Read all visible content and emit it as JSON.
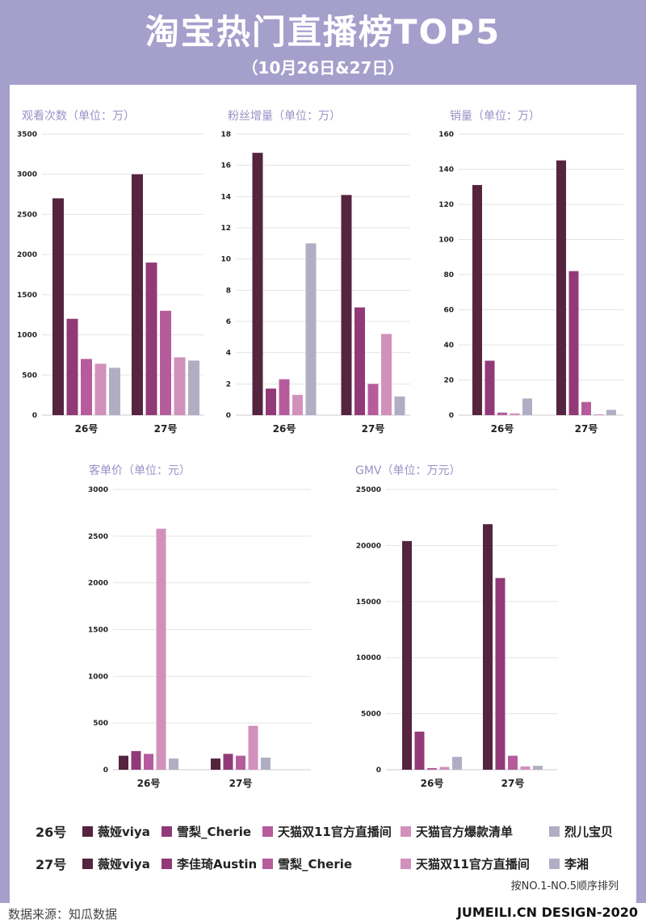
{
  "header": {
    "title": "淘宝热门直播榜TOP5",
    "subtitle": "（10月26日&27日）"
  },
  "colors": [
    "#55243f",
    "#923a77",
    "#b65c9c",
    "#d191bb",
    "#b1aec4"
  ],
  "legend": {
    "day26": {
      "label": "26号",
      "items": [
        "薇娅viya",
        "雪梨_Cherie",
        "天猫双11官方直播间",
        "天猫官方爆款清单",
        "烈儿宝贝"
      ]
    },
    "day27": {
      "label": "27号",
      "items": [
        "薇娅viya",
        "李佳琦Austin",
        "雪梨_Cherie",
        "天猫双11官方直播间",
        "李湘"
      ]
    },
    "note": "按NO.1-NO.5顺序排列"
  },
  "footer": {
    "source": "数据来源：知瓜数据",
    "brand": "JUMEILI.CN DESIGN-2020"
  },
  "chart_data": [
    {
      "type": "bar",
      "title": "观看次数（单位：万）",
      "categories": [
        "26号",
        "27号"
      ],
      "ylim": [
        0,
        3500
      ],
      "ticks": [
        0,
        500,
        1000,
        1500,
        2000,
        2500,
        3000,
        3500
      ],
      "series": [
        {
          "name": "No.1",
          "values": [
            2700,
            3000
          ]
        },
        {
          "name": "No.2",
          "values": [
            1200,
            1900
          ]
        },
        {
          "name": "No.3",
          "values": [
            700,
            1300
          ]
        },
        {
          "name": "No.4",
          "values": [
            640,
            720
          ]
        },
        {
          "name": "No.5",
          "values": [
            590,
            680
          ]
        }
      ]
    },
    {
      "type": "bar",
      "title": "粉丝增量（单位：万）",
      "categories": [
        "26号",
        "27号"
      ],
      "ylim": [
        0,
        18
      ],
      "ticks": [
        0,
        2,
        4,
        6,
        8,
        10,
        12,
        14,
        16,
        18
      ],
      "series": [
        {
          "name": "No.1",
          "values": [
            16.8,
            14.1
          ]
        },
        {
          "name": "No.2",
          "values": [
            1.7,
            6.9
          ]
        },
        {
          "name": "No.3",
          "values": [
            2.3,
            2.0
          ]
        },
        {
          "name": "No.4",
          "values": [
            1.3,
            5.2
          ]
        },
        {
          "name": "No.5",
          "values": [
            11,
            1.2
          ]
        }
      ]
    },
    {
      "type": "bar",
      "title": "销量（单位：万）",
      "categories": [
        "26号",
        "27号"
      ],
      "ylim": [
        0,
        160
      ],
      "ticks": [
        0,
        20,
        40,
        60,
        80,
        100,
        120,
        140,
        160
      ],
      "series": [
        {
          "name": "No.1",
          "values": [
            131,
            145
          ]
        },
        {
          "name": "No.2",
          "values": [
            31,
            82
          ]
        },
        {
          "name": "No.3",
          "values": [
            1.5,
            7.5
          ]
        },
        {
          "name": "No.4",
          "values": [
            1,
            0.5
          ]
        },
        {
          "name": "No.5",
          "values": [
            9.5,
            3
          ]
        }
      ]
    },
    {
      "type": "bar",
      "title": "客单价（单位：元）",
      "categories": [
        "26号",
        "27号"
      ],
      "ylim": [
        0,
        3000
      ],
      "ticks": [
        0,
        500,
        1000,
        1500,
        2000,
        2500,
        3000
      ],
      "series": [
        {
          "name": "No.1",
          "values": [
            150,
            120
          ]
        },
        {
          "name": "No.2",
          "values": [
            200,
            170
          ]
        },
        {
          "name": "No.3",
          "values": [
            170,
            150
          ]
        },
        {
          "name": "No.4",
          "values": [
            2580,
            470
          ]
        },
        {
          "name": "No.5",
          "values": [
            120,
            130
          ]
        }
      ]
    },
    {
      "type": "bar",
      "title": "GMV（单位：万元）",
      "categories": [
        "26号",
        "27号"
      ],
      "ylim": [
        0,
        25000
      ],
      "ticks": [
        0,
        5000,
        10000,
        15000,
        20000,
        25000
      ],
      "series": [
        {
          "name": "No.1",
          "values": [
            20400,
            21900
          ]
        },
        {
          "name": "No.2",
          "values": [
            3400,
            17100
          ]
        },
        {
          "name": "No.3",
          "values": [
            150,
            1250
          ]
        },
        {
          "name": "No.4",
          "values": [
            250,
            300
          ]
        },
        {
          "name": "No.5",
          "values": [
            1150,
            350
          ]
        }
      ]
    }
  ]
}
